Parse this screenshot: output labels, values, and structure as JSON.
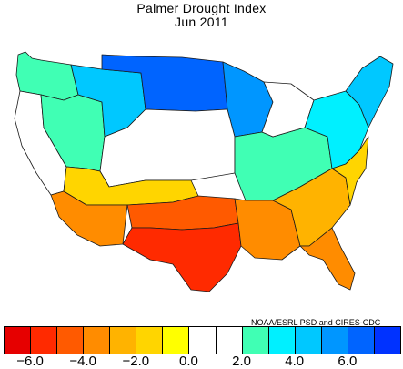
{
  "title": "Palmer Drought Index",
  "subtitle": "Jun 2011",
  "credit": "NOAA/ESRL PSD and CIRES-CDC",
  "colorbar": {
    "colors": [
      "#e60000",
      "#ff2a00",
      "#ff5a00",
      "#ff8c00",
      "#ffb300",
      "#ffd500",
      "#ffff00",
      "#ffffff",
      "#ffffff",
      "#40ffb4",
      "#00f0ff",
      "#00c8ff",
      "#0096ff",
      "#0064ff",
      "#0032ff"
    ],
    "ticks": [
      {
        "value": -6.0,
        "label": "−6.0"
      },
      {
        "value": -4.0,
        "label": "−4.0"
      },
      {
        "value": -2.0,
        "label": "−2.0"
      },
      {
        "value": 0.0,
        "label": "0.0"
      },
      {
        "value": 2.0,
        "label": "2.0"
      },
      {
        "value": 4.0,
        "label": "4.0"
      },
      {
        "value": 6.0,
        "label": "6.0"
      }
    ]
  },
  "regions": [
    {
      "name": "pacific-northwest",
      "value": 2.5
    },
    {
      "name": "california",
      "value": 1.5
    },
    {
      "name": "great-basin",
      "value": 2.0
    },
    {
      "name": "northern-rockies",
      "value": 4.5
    },
    {
      "name": "northern-plains",
      "value": 6.0
    },
    {
      "name": "upper-midwest",
      "value": 5.0
    },
    {
      "name": "central-plains",
      "value": 1.5
    },
    {
      "name": "ohio-valley",
      "value": 2.5
    },
    {
      "name": "great-lakes",
      "value": 1.5
    },
    {
      "name": "northeast",
      "value": 3.0
    },
    {
      "name": "new-england",
      "value": 4.5
    },
    {
      "name": "colorado-plateau",
      "value": -2.0
    },
    {
      "name": "southwest",
      "value": -4.0
    },
    {
      "name": "southern-plains",
      "value": -5.0
    },
    {
      "name": "texas",
      "value": -6.0
    },
    {
      "name": "gulf-coast",
      "value": -4.0
    },
    {
      "name": "southeast",
      "value": -3.0
    },
    {
      "name": "mid-atlantic",
      "value": -2.0
    },
    {
      "name": "florida",
      "value": -3.5
    }
  ]
}
